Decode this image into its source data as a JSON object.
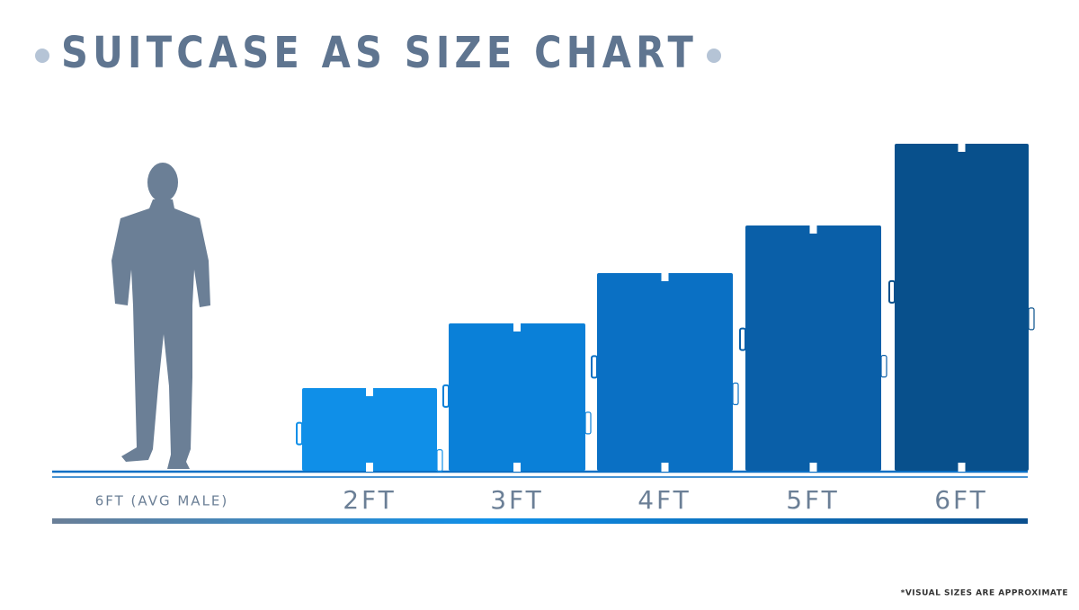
{
  "title": "SUITCASE AS SIZE CHART",
  "person": {
    "label": "6FT (AVG MALE)"
  },
  "suitcases": [
    {
      "label": "2FT"
    },
    {
      "label": "3FT"
    },
    {
      "label": "4FT"
    },
    {
      "label": "5FT"
    },
    {
      "label": "6FT"
    }
  ],
  "footnote": "*VISUAL SIZES ARE APPROXIMATE"
}
